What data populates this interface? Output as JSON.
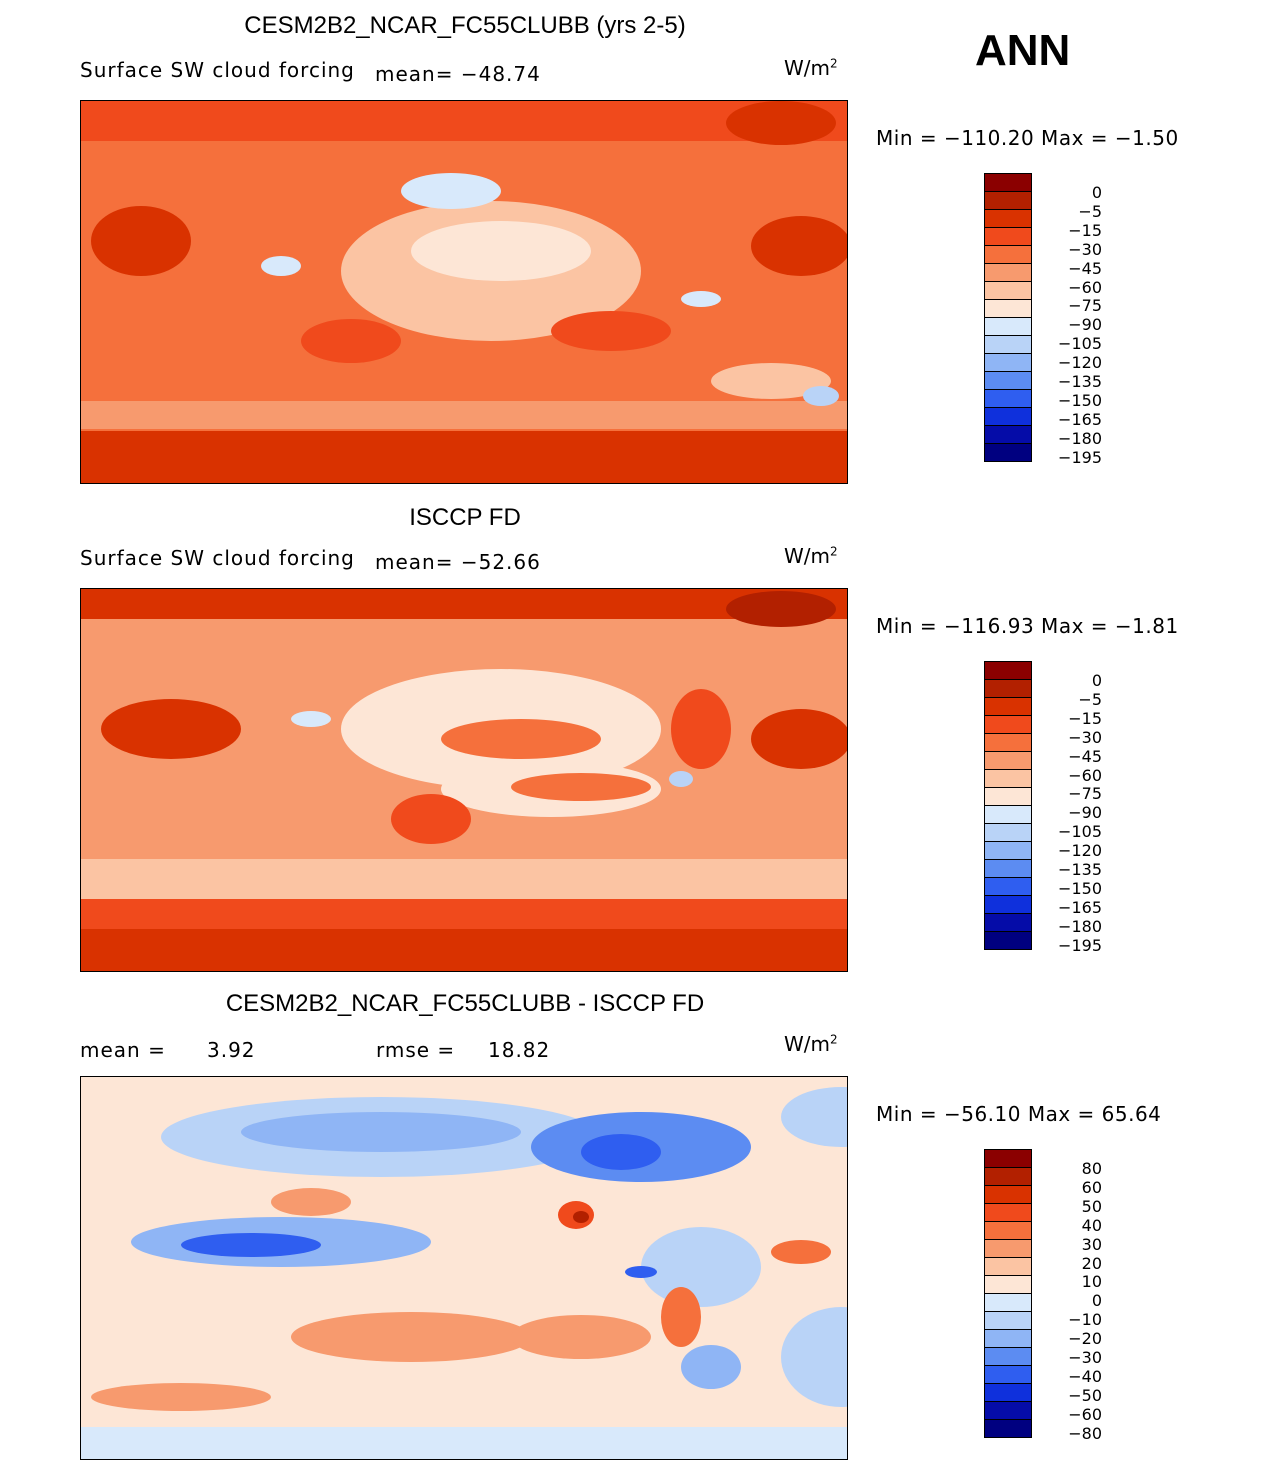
{
  "season": "ANN",
  "panels": [
    {
      "title": "CESM2B2_NCAR_FC55CLUBB (yrs 2-5)",
      "variable": "Surface SW cloud forcing",
      "stat_label": "mean= −48.74",
      "units_base": "W/m",
      "units_sup": "2",
      "minmax": "Min = −110.20 Max =  −1.50",
      "colorbar_labels": [
        "0",
        "−5",
        "−15",
        "−30",
        "−45",
        "−60",
        "−75",
        "−90",
        "−105",
        "−120",
        "−135",
        "−150",
        "−165",
        "−180",
        "−195"
      ]
    },
    {
      "title": "ISCCP FD",
      "variable": "Surface SW cloud forcing",
      "stat_label": "mean= −52.66",
      "units_base": "W/m",
      "units_sup": "2",
      "minmax": "Min = −116.93 Max =  −1.81",
      "colorbar_labels": [
        "0",
        "−5",
        "−15",
        "−30",
        "−45",
        "−60",
        "−75",
        "−90",
        "−105",
        "−120",
        "−135",
        "−150",
        "−165",
        "−180",
        "−195"
      ]
    },
    {
      "title": "CESM2B2_NCAR_FC55CLUBB - ISCCP FD",
      "mean_label": "mean =",
      "mean_value": "3.92",
      "rmse_label": "rmse =",
      "rmse_value": "18.82",
      "units_base": "W/m",
      "units_sup": "2",
      "minmax": "Min = −56.10 Max =  65.64",
      "colorbar_labels": [
        "80",
        "60",
        "50",
        "40",
        "30",
        "20",
        "10",
        "0",
        "−10",
        "−20",
        "−30",
        "−40",
        "−50",
        "−60",
        "−80"
      ]
    }
  ],
  "colors": {
    "abs_scale": [
      "#8b0000",
      "#b22000",
      "#d93200",
      "#f04a1c",
      "#f5703c",
      "#f79a6e",
      "#fbc4a3",
      "#fde6d6",
      "#d8e9fb",
      "#b9d3f7",
      "#8fb5f5",
      "#5c8cf2",
      "#2f5ef0",
      "#0f30dc",
      "#050ca8",
      "#000080"
    ],
    "diff_scale": [
      "#8b0000",
      "#b22000",
      "#d93200",
      "#f04a1c",
      "#f5703c",
      "#f79a6e",
      "#fbc4a3",
      "#fde6d6",
      "#d8e9fb",
      "#b9d3f7",
      "#8fb5f5",
      "#5c8cf2",
      "#2f5ef0",
      "#0f30dc",
      "#050ca8",
      "#000080"
    ],
    "coastline": "#000000"
  }
}
